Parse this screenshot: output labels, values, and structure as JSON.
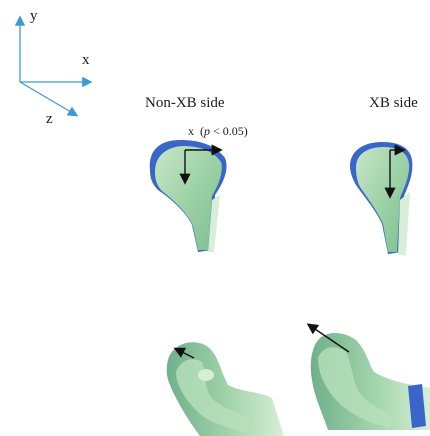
{
  "axes": {
    "y_label": "y",
    "x_label": "x",
    "z_label": "z",
    "axis_color": "#3d9ad6"
  },
  "columns": {
    "left_title": "Non-XB side",
    "right_title": "XB side"
  },
  "annotation": {
    "axis": "x",
    "open": "(",
    "p_symbol": "p",
    "rest": " < 0.05)"
  },
  "colors": {
    "bone_green": "#9dd2a6",
    "bone_green_light": "#c9e6c9",
    "bone_blue": "#3a66c9",
    "arrow": "#111111"
  }
}
